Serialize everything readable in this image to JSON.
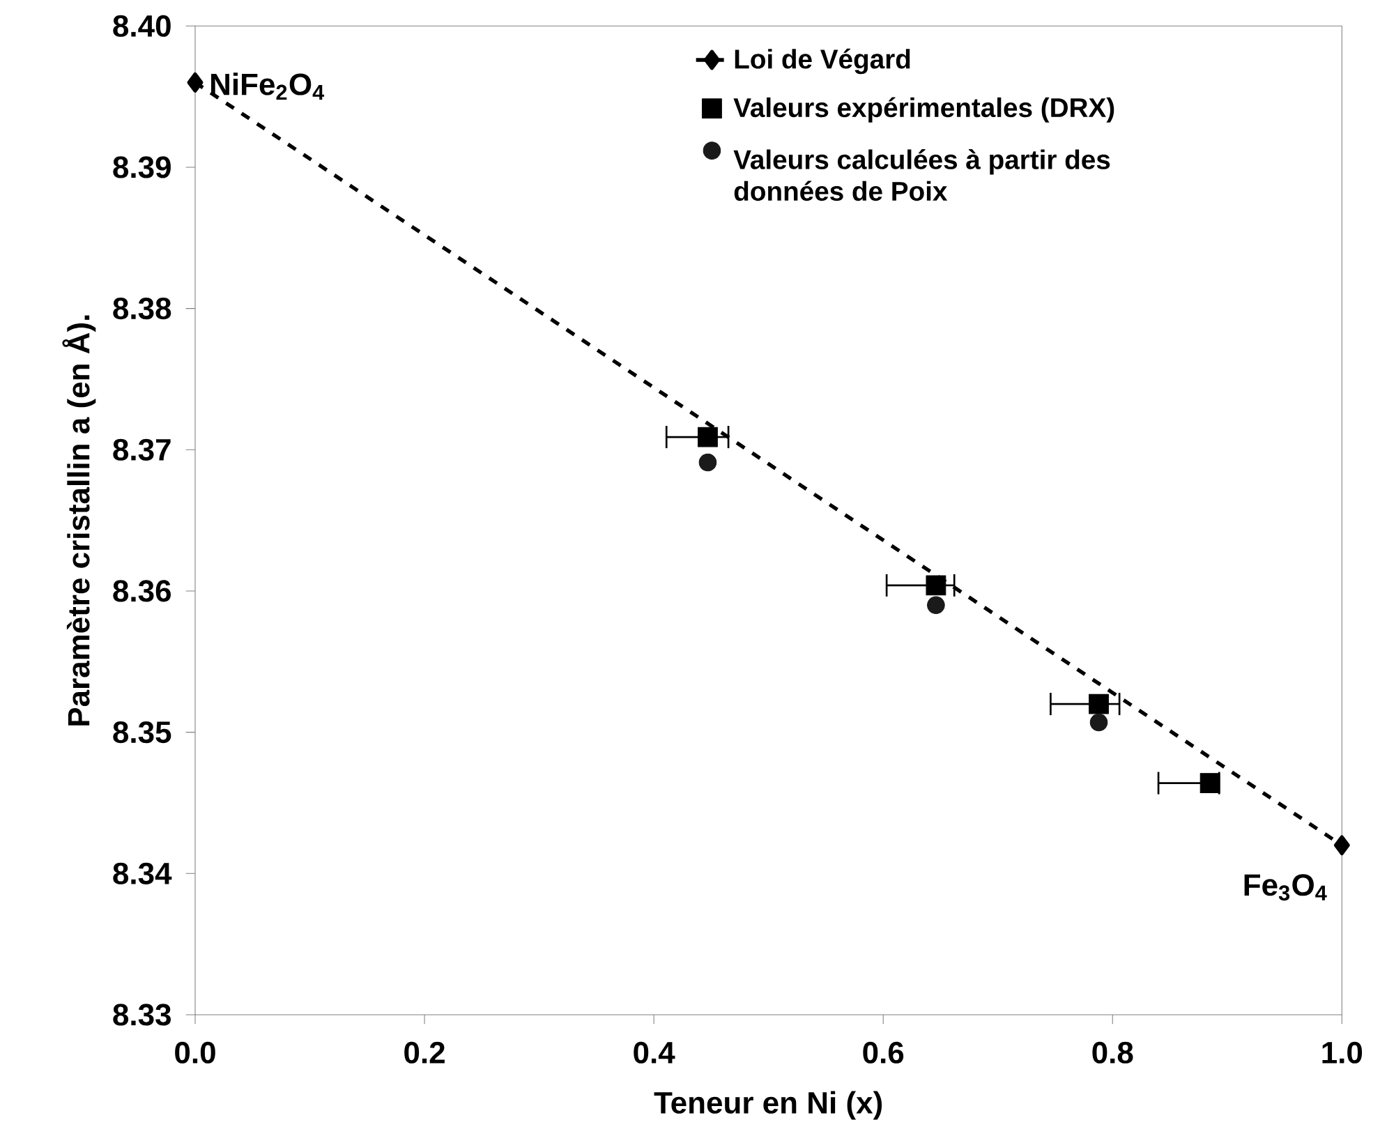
{
  "chart_data": {
    "type": "scatter",
    "xlabel": "Teneur en Ni (x)",
    "ylabel": "Paramètre cristallin a (en Å).",
    "xlim": [
      0,
      1
    ],
    "ylim": [
      8.33,
      8.4
    ],
    "xticks": [
      {
        "value": 0,
        "label": "0.0"
      },
      0.2,
      0.4,
      0.6,
      0.8,
      {
        "value": 1,
        "label": "1.0"
      }
    ],
    "yticks": [
      8.33,
      8.34,
      8.35,
      8.36,
      8.37,
      8.38,
      8.39,
      {
        "value": 8.4,
        "label": "8.40"
      }
    ],
    "legend": "top right",
    "series": [
      {
        "name": "Loi de Végard",
        "type": "line",
        "line_style": "dashed",
        "marker": "diamond",
        "color": "#000000",
        "x": [
          0,
          1
        ],
        "values": [
          8.396,
          8.342
        ]
      },
      {
        "name": "Valeurs expérimentales (DRX)",
        "marker": "square",
        "color": "#000000",
        "x": [
          0.447,
          0.646,
          0.788,
          0.885
        ],
        "values": [
          8.3709,
          8.3604,
          8.352,
          8.3464
        ],
        "xerrors": [
          [
            0.411,
            0.465
          ],
          [
            0.603,
            0.662
          ],
          [
            0.746,
            0.806
          ],
          [
            0.84,
            0.893
          ]
        ]
      },
      {
        "name": "Valeurs calculées à partir des données de Poix",
        "marker": "circle",
        "color": "#1a1a1a",
        "x": [
          0.447,
          0.646,
          0.788
        ],
        "values": [
          8.3691,
          8.359,
          8.3507
        ]
      }
    ],
    "annotations": [
      {
        "text": "NiFe$_{2}$O$_{4}$",
        "x": 0,
        "y": 8.396
      },
      {
        "text": "Fe$_{3}$O$_{4}$",
        "x": 1,
        "y": 8.342
      }
    ]
  }
}
